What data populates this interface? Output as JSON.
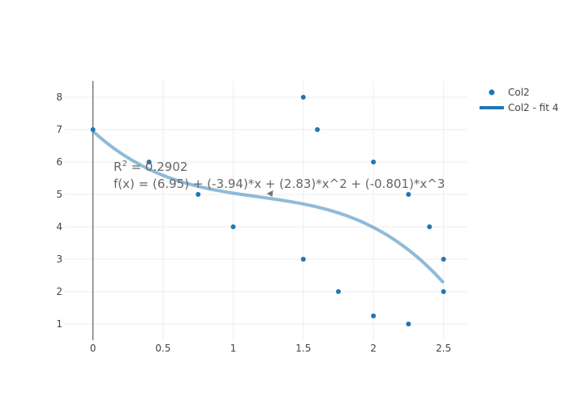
{
  "chart_data": {
    "type": "scatter",
    "title": "",
    "xlabel": "",
    "ylabel": "",
    "xlim": [
      -0.2,
      2.67
    ],
    "ylim": [
      0.5,
      8.5
    ],
    "x_ticks": [
      "0",
      "0.5",
      "1",
      "1.5",
      "2",
      "2.5"
    ],
    "y_ticks": [
      "1",
      "2",
      "3",
      "4",
      "5",
      "6",
      "7",
      "8"
    ],
    "grid": true,
    "legend_position": "top-right",
    "series": [
      {
        "name": "Col2",
        "mode": "markers",
        "color": "#1f77b4",
        "x": [
          0,
          0.4,
          0.75,
          1,
          1.5,
          1.5,
          1.6,
          1.75,
          2,
          2,
          2.25,
          2.25,
          2.4,
          2.5,
          2.5
        ],
        "y": [
          7,
          6,
          5,
          4,
          8,
          3,
          7,
          2,
          6,
          1.25,
          5,
          1,
          4,
          3,
          2
        ]
      },
      {
        "name": "Col2 - fit 4",
        "mode": "line",
        "color": "#1f77b4",
        "coefficients": [
          6.95,
          -3.94,
          2.83,
          -0.801
        ],
        "x_range": [
          0,
          2.5
        ]
      }
    ],
    "annotation": {
      "r2_label": "R",
      "r2_sup": "2",
      "r2_value": " = 0.2902",
      "equation": "f(x) = (6.95) + (-3.94)*x + (2.83)*x^2 + (-0.801)*x^3",
      "arrow_target": [
        1.25,
        5
      ]
    }
  }
}
